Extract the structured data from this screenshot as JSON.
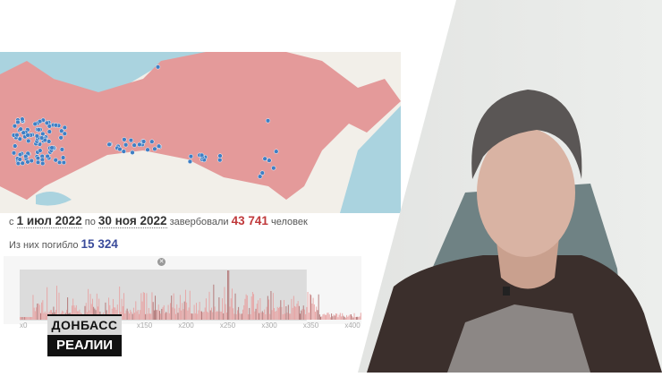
{
  "summary": {
    "prefix": "с",
    "date_from": "1 июл 2022",
    "between": "по",
    "date_to": "30 ноя 2022",
    "verb": "завербовали",
    "recruited": "43 741",
    "unit": "человек"
  },
  "deaths": {
    "label": "Из них погибло",
    "value": "15 324"
  },
  "timeline": {
    "close_icon": "close-icon",
    "ticks": [
      "x0",
      "x150",
      "x200",
      "x250",
      "x300",
      "x350",
      "x400"
    ],
    "tick_values": [
      0,
      150,
      200,
      250,
      300,
      350,
      400
    ],
    "selection_range": [
      0,
      345
    ]
  },
  "logo": {
    "line1": "ДОНБАСС",
    "line2": "РЕАЛИИ"
  },
  "colors": {
    "recruited": "#c0393b",
    "deaths": "#3a4b9b",
    "region": "#e49a9a",
    "pin": "#3f7fc4"
  }
}
